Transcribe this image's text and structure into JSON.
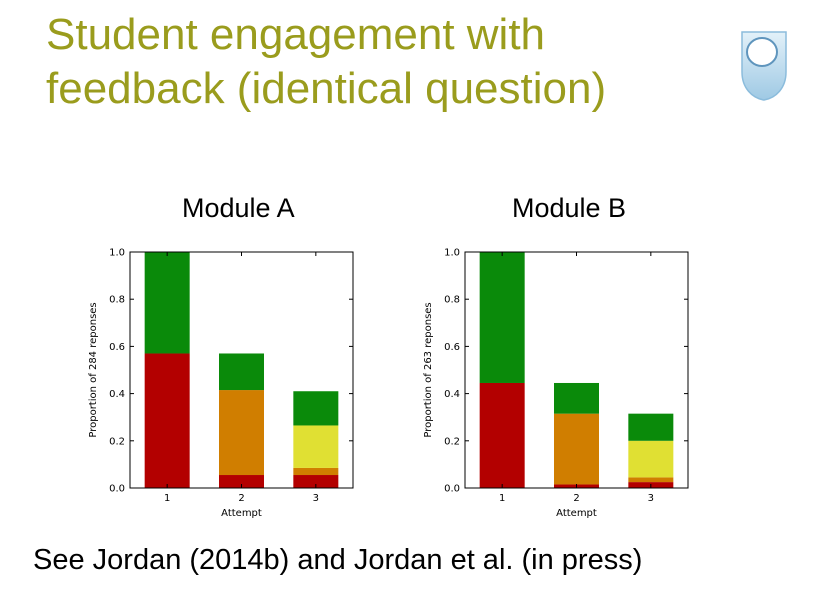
{
  "slide": {
    "title_line1": "Student engagement with",
    "title_line2": "feedback (identical question)",
    "citation": "See Jordan (2014b) and Jordan et al. (in press)"
  },
  "logo": {
    "icon": "open-university-shield-icon",
    "colors": [
      "#cfe6f3",
      "#a8cfe8",
      "#ffffff"
    ]
  },
  "colors": {
    "green": "#0a8a0a",
    "orange": "#d07e00",
    "yellow": "#e0e033",
    "red": "#b30000",
    "title": "#9a9c1d"
  },
  "chart_data": [
    {
      "type": "bar",
      "stacked": true,
      "title": "Module A",
      "xlabel": "Attempt",
      "ylabel": "Proportion of 284 reponses",
      "ylim": [
        0,
        1.0
      ],
      "yticks": [
        "0.0",
        "0.2",
        "0.4",
        "0.6",
        "0.8",
        "1.0"
      ],
      "categories": [
        "1",
        "2",
        "3"
      ],
      "series": [
        {
          "color": "red",
          "values": [
            0.57,
            0.055,
            0.055
          ]
        },
        {
          "color": "orange",
          "values": [
            0,
            0.36,
            0.03
          ]
        },
        {
          "color": "yellow",
          "values": [
            0,
            0,
            0.18
          ]
        },
        {
          "color": "green",
          "values": [
            0.43,
            0.155,
            0.145
          ]
        }
      ]
    },
    {
      "type": "bar",
      "stacked": true,
      "title": "Module B",
      "xlabel": "Attempt",
      "ylabel": "Proportion of 263 reponses",
      "ylim": [
        0,
        1.0
      ],
      "yticks": [
        "0.0",
        "0.2",
        "0.4",
        "0.6",
        "0.8",
        "1.0"
      ],
      "categories": [
        "1",
        "2",
        "3"
      ],
      "series": [
        {
          "color": "red",
          "values": [
            0.445,
            0.015,
            0.025
          ]
        },
        {
          "color": "orange",
          "values": [
            0,
            0.3,
            0.02
          ]
        },
        {
          "color": "yellow",
          "values": [
            0,
            0,
            0.155
          ]
        },
        {
          "color": "green",
          "values": [
            0.555,
            0.13,
            0.115
          ]
        }
      ]
    }
  ]
}
